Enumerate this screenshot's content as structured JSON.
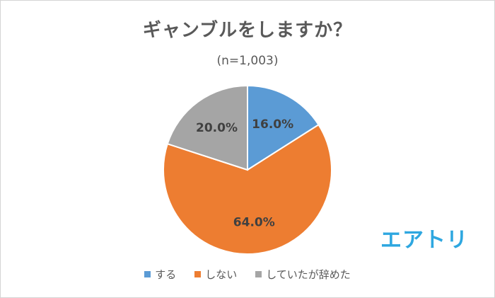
{
  "chart_data": {
    "type": "pie",
    "title": "ギャンブルをしますか？",
    "subtitle": "(n=1,003)",
    "categories": [
      "する",
      "しない",
      "していたが辞めた"
    ],
    "values": [
      16.0,
      64.0,
      20.0
    ],
    "data_labels": [
      "16.0%",
      "64.0%",
      "20.0%"
    ],
    "colors": [
      "#5b9bd5",
      "#ed7d31",
      "#a5a5a5"
    ],
    "legend_position": "bottom",
    "start_angle": "12 o'clock, clockwise"
  },
  "logo": {
    "text": "エアトリ",
    "color": "#2ea7e0"
  }
}
